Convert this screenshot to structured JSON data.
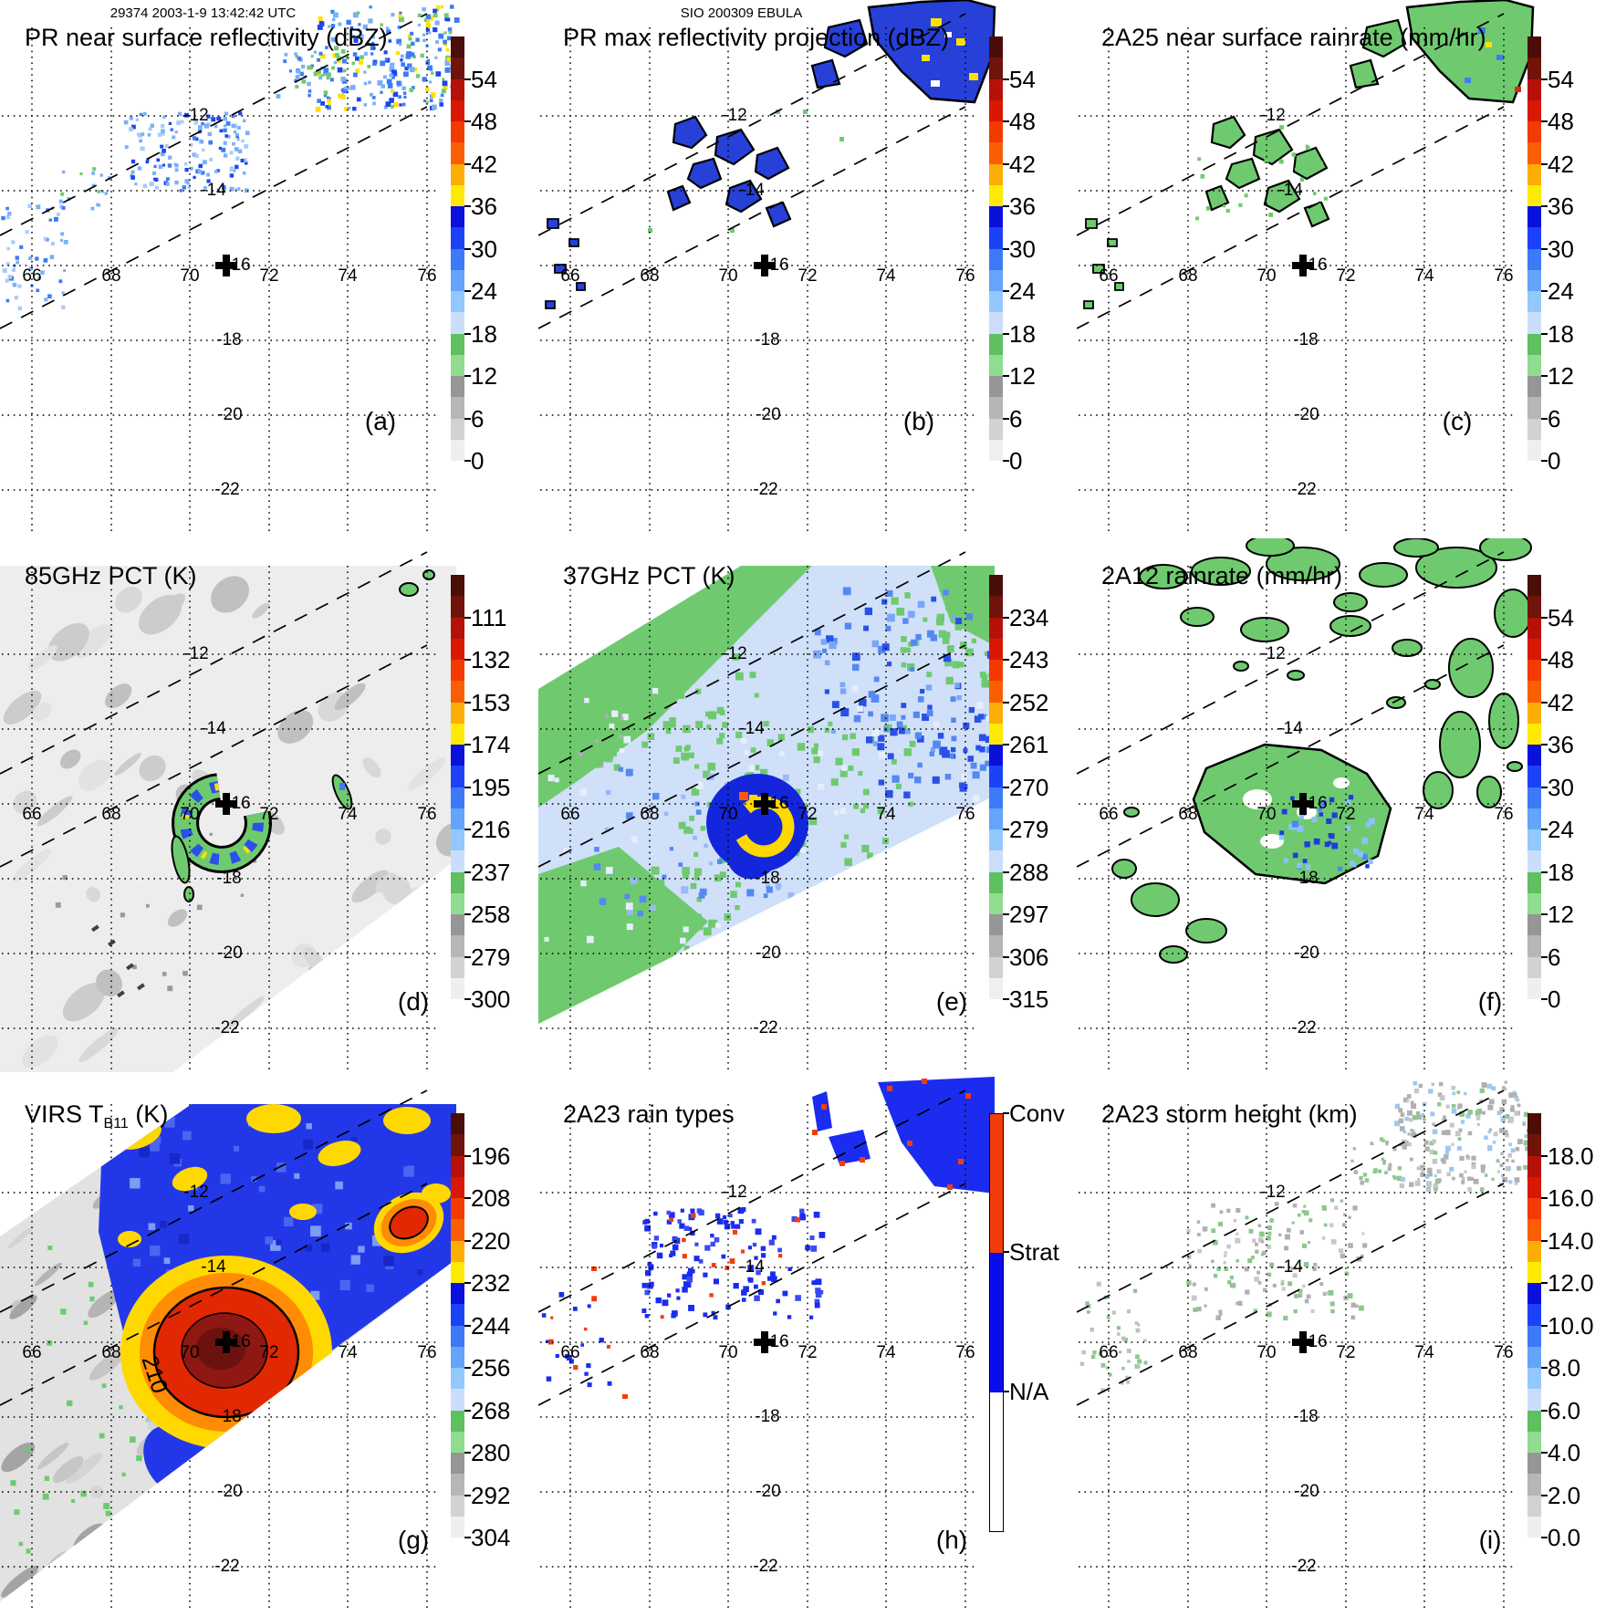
{
  "header": {
    "left": "29374 2003-1-9 13:42:42 UTC",
    "center": "SIO 200309 EBULA"
  },
  "axes": {
    "lon_labels": [
      "66",
      "68",
      "70",
      "72",
      "74",
      "76"
    ],
    "lat_labels": [
      "-12",
      "-14",
      "-16",
      "-18",
      "-20",
      "-22"
    ]
  },
  "colors": {
    "scale_palette": [
      "#490e07",
      "#70130a",
      "#b51108",
      "#d91804",
      "#f23a02",
      "#fa5e05",
      "#fcae06",
      "#feea02",
      "#0a10dc",
      "#1c42f8",
      "#3c7af8",
      "#64a4fa",
      "#92c8fc",
      "#cadefc",
      "#5fc05f",
      "#90dc90",
      "#969696",
      "#b6b6b6",
      "#d2d2d2",
      "#efefef"
    ],
    "raintype": {
      "conv": "#f23c0a",
      "strat": "#0a0cf0",
      "na": "#ffffff"
    },
    "map": {
      "speck_blue_dark": "#1c46ee",
      "speck_blue": "#3f7cf4",
      "speck_blue_light": "#7ab0f8",
      "speck_blue_pale": "#a8ccfa",
      "green": "#6fca6f",
      "yellow": "#ffe000",
      "orange": "#ff8c04",
      "red": "#e22803",
      "maroon": "#8e1812",
      "maroon_dark": "#6b120e",
      "navy": "#2740d8",
      "gray_field": "#ededed",
      "pct_base": "#cfe0f8",
      "pct_blue": "#2238e8",
      "height_gray": "#b0b0b0",
      "height_green": "#8cc88c",
      "height_blue": "#a0c8f0"
    }
  },
  "panels": [
    {
      "id": "a",
      "letter": "(a)",
      "title": "PR near surface reflectivity (dBZ)",
      "colorbar": {
        "kind": "scale",
        "ticks": [
          "54",
          "48",
          "42",
          "36",
          "30",
          "24",
          "18",
          "12",
          "6",
          "0"
        ]
      }
    },
    {
      "id": "b",
      "letter": "(b)",
      "title": "PR max reflectivity projection (dBZ)",
      "colorbar": {
        "kind": "scale",
        "ticks": [
          "54",
          "48",
          "42",
          "36",
          "30",
          "24",
          "18",
          "12",
          "6",
          "0"
        ]
      }
    },
    {
      "id": "c",
      "letter": "(c)",
      "title": "2A25 near surface rainrate (mm/hr)",
      "colorbar": {
        "kind": "scale",
        "ticks": [
          "54",
          "48",
          "42",
          "36",
          "30",
          "24",
          "18",
          "12",
          "6",
          "0"
        ]
      }
    },
    {
      "id": "d",
      "letter": "(d)",
      "title": "85GHz PCT (K)",
      "colorbar": {
        "kind": "scale",
        "ticks": [
          "111",
          "132",
          "153",
          "174",
          "195",
          "216",
          "237",
          "258",
          "279",
          "300"
        ]
      }
    },
    {
      "id": "e",
      "letter": "(e)",
      "title": "37GHz PCT (K)",
      "colorbar": {
        "kind": "scale",
        "ticks": [
          "234",
          "243",
          "252",
          "261",
          "270",
          "279",
          "288",
          "297",
          "306",
          "315"
        ]
      }
    },
    {
      "id": "f",
      "letter": "(f)",
      "title": "2A12 rainrate (mm/hr)",
      "colorbar": {
        "kind": "scale",
        "ticks": [
          "54",
          "48",
          "42",
          "36",
          "30",
          "24",
          "18",
          "12",
          "6",
          "0"
        ]
      }
    },
    {
      "id": "g",
      "letter": "(g)",
      "title": "VIRS TB11 (K)",
      "title_parts": {
        "prefix": "VIRS T",
        "sub": "B11",
        "suffix": " (K)"
      },
      "contour_label": "210",
      "colorbar": {
        "kind": "scale",
        "ticks": [
          "196",
          "208",
          "220",
          "232",
          "244",
          "256",
          "268",
          "280",
          "292",
          "304"
        ]
      }
    },
    {
      "id": "h",
      "letter": "(h)",
      "title": "2A23 rain types",
      "colorbar": {
        "kind": "categories",
        "ticks": [
          "Conv",
          "Strat",
          "N/A"
        ]
      }
    },
    {
      "id": "i",
      "letter": "(i)",
      "title": "2A23 storm height (km)",
      "colorbar": {
        "kind": "scale",
        "ticks": [
          "18.0",
          "16.0",
          "14.0",
          "12.0",
          "10.0",
          "8.0",
          "6.0",
          "4.0",
          "2.0",
          "0.0"
        ]
      }
    }
  ],
  "chart_data": {
    "layout": "3x3 multipanel satellite overpass figure of a tropical cyclone",
    "overpass": {
      "orbit": "29374",
      "datetime": "2003-1-9 13:42:42 UTC",
      "storm": "SIO 200309 EBULA"
    },
    "axes": {
      "lon_ticks": [
        66,
        68,
        70,
        72,
        74,
        76
      ],
      "lat_ticks": [
        -12,
        -14,
        -16,
        -18,
        -20,
        -22
      ],
      "lon_range": [
        65.2,
        77.4
      ],
      "lat_range": [
        -23.2,
        -10.8
      ],
      "grid": "dotted"
    },
    "storm_center": {
      "lon": 70.9,
      "lat": -16.0,
      "marker": "bold black cross"
    },
    "swath_edges": "two dashed diagonal lines SW-NE mark the narrow PR swath in every panel",
    "panels": [
      {
        "panel": "a",
        "type": "heatmap",
        "title": "PR near surface reflectivity",
        "units": "dBZ",
        "scale_ticks": [
          54,
          48,
          42,
          36,
          30,
          24,
          18,
          12,
          6,
          0
        ],
        "description": "scattered 15-40 dBZ echo speckles in the narrow PR swath NE of center and near the W swath edge"
      },
      {
        "panel": "b",
        "type": "heatmap",
        "title": "PR max reflectivity projection",
        "units": "dBZ",
        "scale_ticks": [
          54,
          48,
          42,
          36,
          30,
          24,
          18,
          12,
          6,
          0
        ],
        "description": "black-outlined echo regions, mostly ~30-36 dBZ blue fill with small 36-42 dBZ yellow cores"
      },
      {
        "panel": "c",
        "type": "heatmap",
        "title": "2A25 near surface rainrate",
        "units": "mm/hr",
        "scale_ticks": [
          54,
          48,
          42,
          36,
          30,
          24,
          18,
          12,
          6,
          0
        ],
        "description": "light rain (~6-18 mm/hr green) in black-outlined cells along the PR swath, few blue/red pixels"
      },
      {
        "panel": "d",
        "type": "heatmap",
        "title": "85GHz PCT",
        "units": "K",
        "scale_ticks": [
          111,
          132,
          153,
          174,
          195,
          216,
          237,
          258,
          279,
          300
        ],
        "description": "warm ~280-300 K light-gray background; C-shaped eyewall ring of 174-237 K ice scattering just SW of the storm-center cross"
      },
      {
        "panel": "e",
        "type": "heatmap",
        "title": "37GHz PCT",
        "units": "K",
        "scale_ticks": [
          234,
          243,
          252,
          261,
          270,
          279,
          288,
          297,
          306,
          315
        ],
        "description": "270-288 K field: green ~288 K patches, pale-blue ~279 K, blue ~270 K bands, and a yellow-orange 252-261 K eyewall arc at the center"
      },
      {
        "panel": "f",
        "type": "heatmap",
        "title": "2A12 rainrate",
        "units": "mm/hr",
        "scale_ticks": [
          54,
          48,
          42,
          36,
          30,
          24,
          18,
          12,
          6,
          0
        ],
        "description": "widespread light-rain blobs (green, black-outlined) across the TMI swath with 6-18 mm/hr blue cells in the cyclone core"
      },
      {
        "panel": "g",
        "type": "heatmap",
        "title": "VIRS TB11",
        "units": "K",
        "scale_ticks": [
          196,
          208,
          220,
          232,
          244,
          256,
          268,
          280,
          292,
          304
        ],
        "contours": [
          210
        ],
        "description": "cold central dense overcast <208 K (red with dark-red core, 210 K contour labeled) ringed by 220-244 K orange/yellow/blue canopy; warm gray clear air to the W"
      },
      {
        "panel": "h",
        "type": "categorical map",
        "title": "2A23 rain types",
        "categories": [
          "Conv",
          "Strat",
          "N/A"
        ],
        "description": "mostly stratiform (blue) echo areas with embedded convective (orange-red) pixels along the PR swath"
      },
      {
        "panel": "i",
        "type": "heatmap",
        "title": "2A23 storm height",
        "units": "km",
        "scale_ticks": [
          18.0,
          16.0,
          14.0,
          12.0,
          10.0,
          8.0,
          6.0,
          4.0,
          2.0,
          0.0
        ],
        "description": "echo tops mostly 4-8 km (gray/green speckles) with a few 8-10 km light-blue pixels"
      }
    ]
  }
}
